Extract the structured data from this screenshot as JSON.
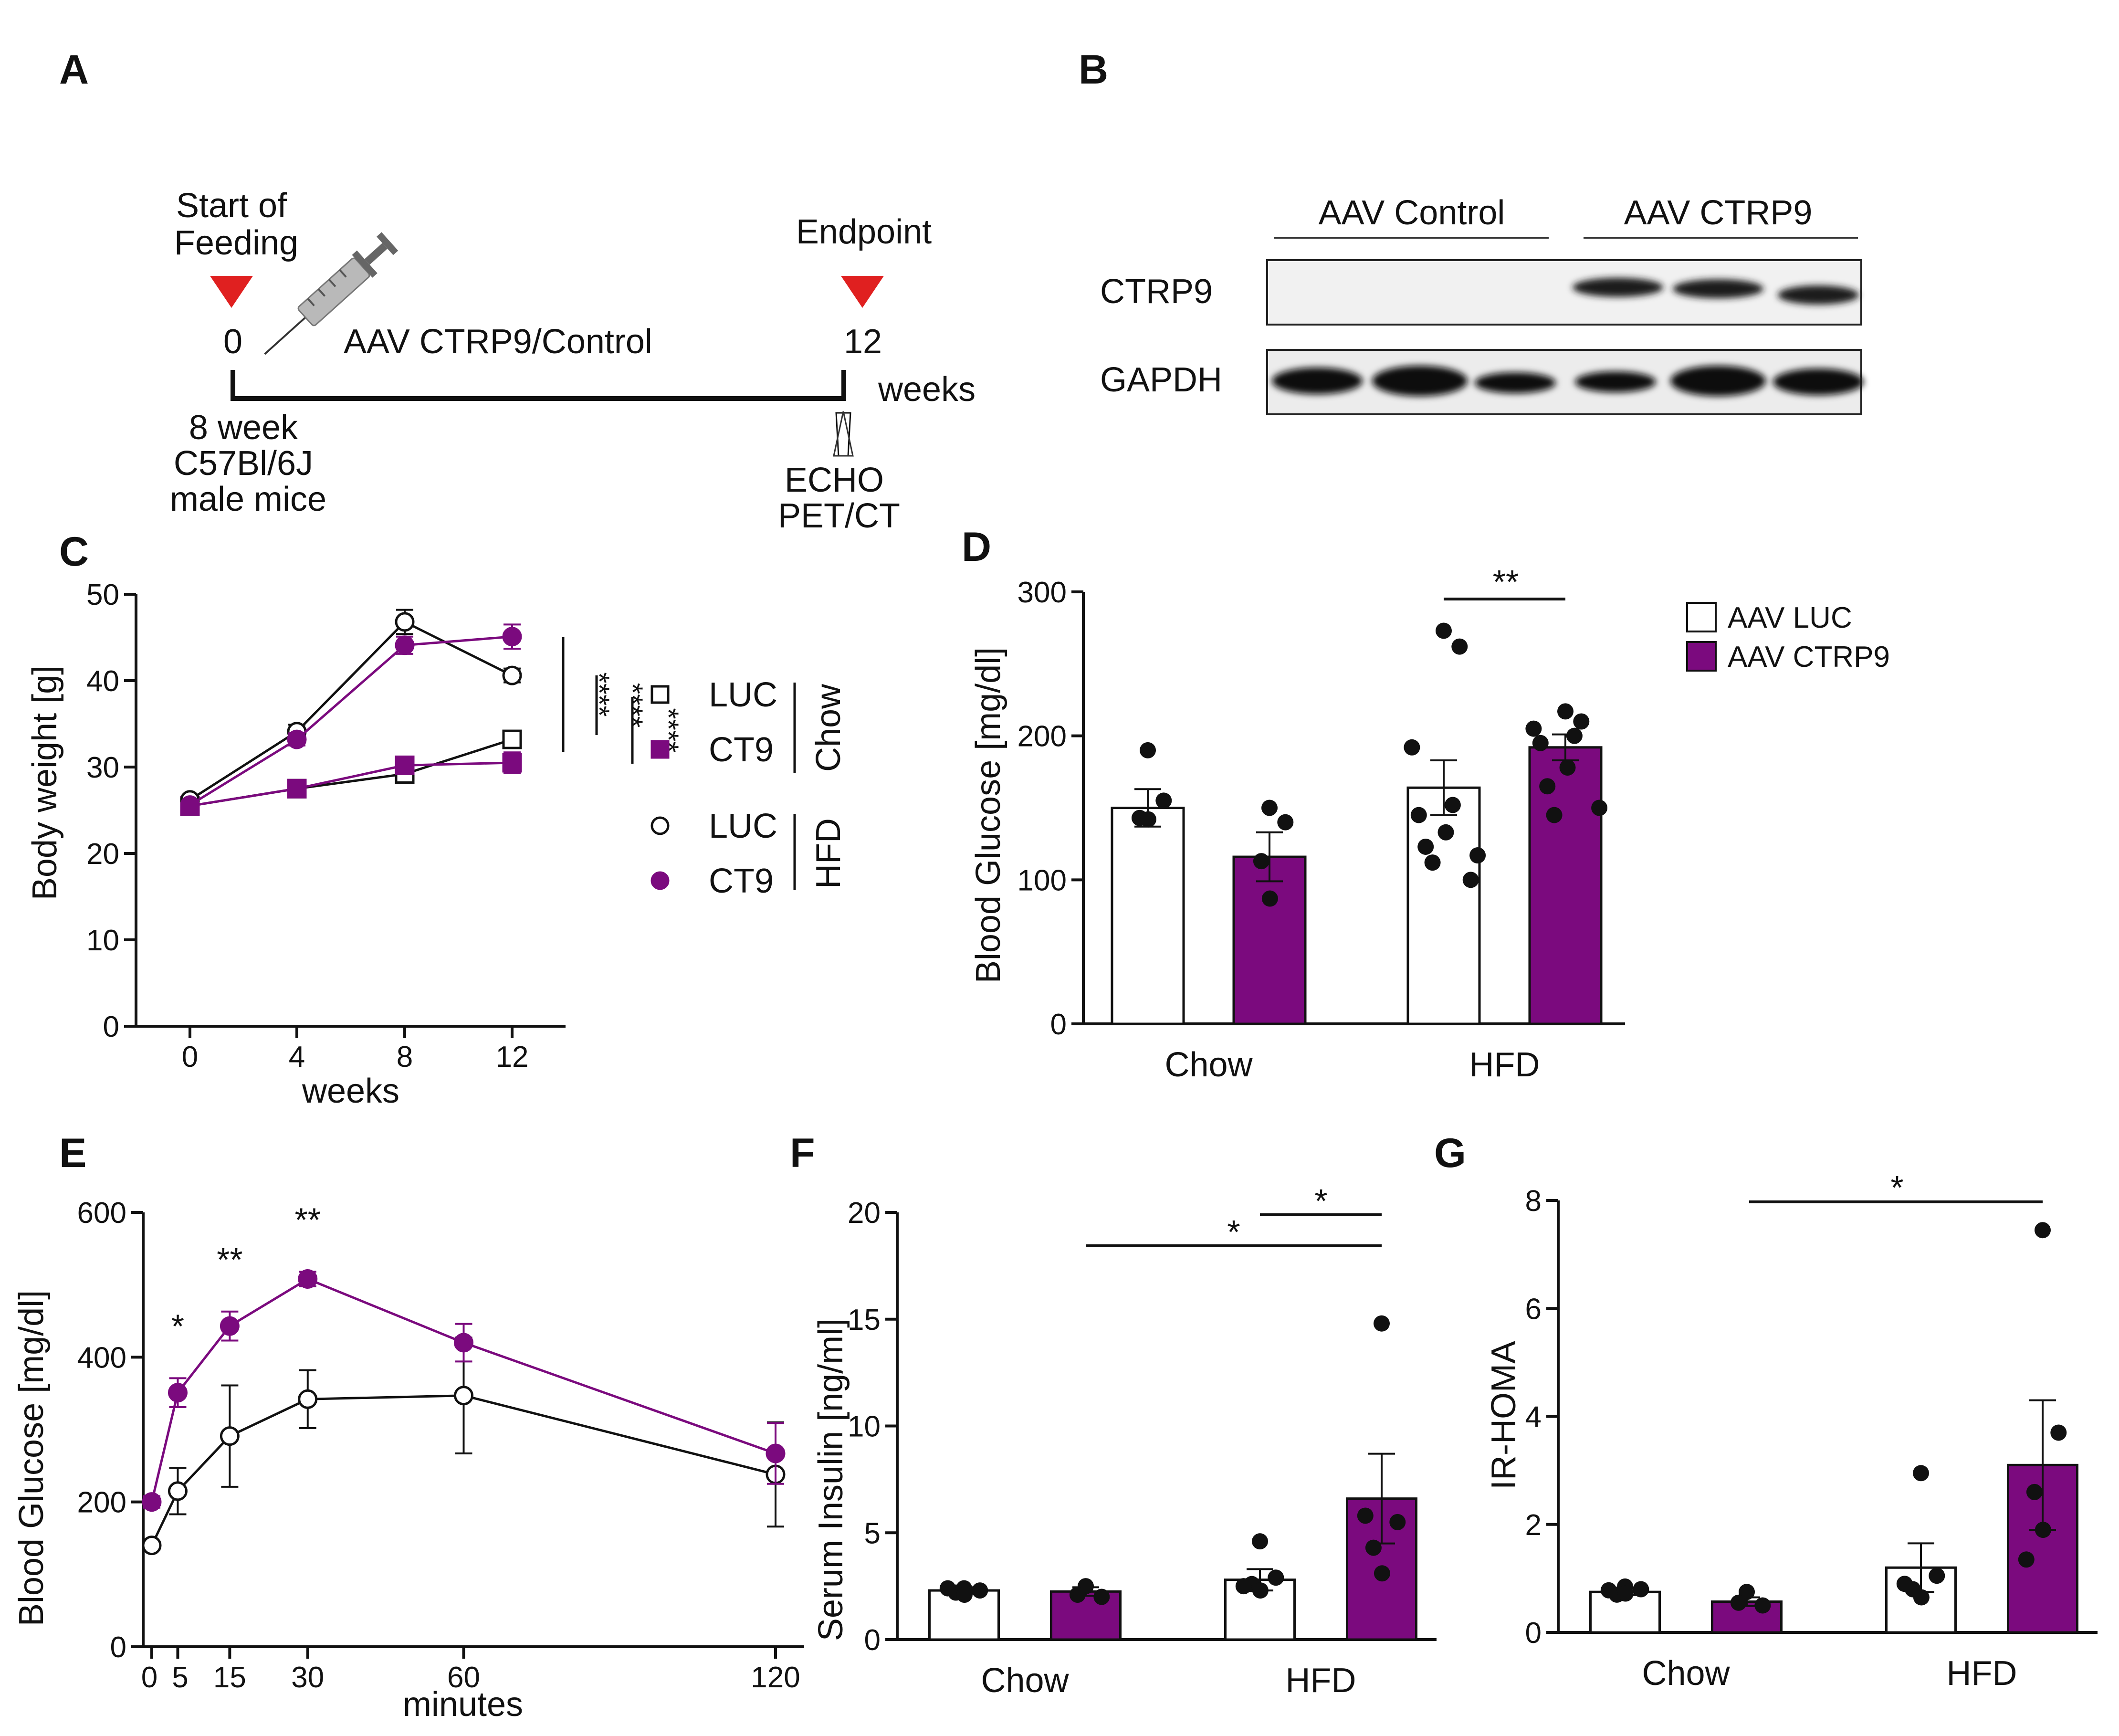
{
  "panel_labels": [
    "A",
    "B",
    "C",
    "D",
    "E",
    "F",
    "G"
  ],
  "colors": {
    "purple": "#7b0a7e",
    "black": "#111111",
    "red": "#e02020",
    "white": "#ffffff"
  },
  "timeline": {
    "start_label": "Start of\nFeeding",
    "endpoint_label": "Endpoint",
    "t0": "0",
    "t12": "12",
    "treatment": "AAV CTRP9/Control",
    "unit": "weeks",
    "mice": "8 week\nC57Bl/6J\nmale mice",
    "readouts": "ECHO\nPET/CT",
    "syringe_icon": "syringe-icon",
    "marker_icon": "red-triangle-icon"
  },
  "blot": {
    "group1": "AAV Control",
    "group2": "AAV CTRP9",
    "rows": [
      "CTRP9",
      "GAPDH"
    ]
  },
  "legend_D": [
    "AAV LUC",
    "AAV CTRP9"
  ],
  "chart_data": [
    {
      "id": "C",
      "type": "line",
      "xlabel": "weeks",
      "ylabel": "Body weight [g]",
      "x": [
        0,
        4,
        8,
        12
      ],
      "xticks": [
        "0",
        "4",
        "8",
        "12"
      ],
      "ylim": [
        0,
        50
      ],
      "yticks": [
        "0",
        "10",
        "20",
        "30",
        "40",
        "50"
      ],
      "series": [
        {
          "name": "LUC",
          "group": "Chow",
          "marker": "open-square",
          "values": [
            25.5,
            27.5,
            29.2,
            33.2
          ],
          "err": [
            0.6,
            0.6,
            0.8,
            1.0
          ]
        },
        {
          "name": "CT9",
          "group": "Chow",
          "marker": "filled-square",
          "values": [
            25.5,
            27.5,
            30.2,
            30.5
          ],
          "err": [
            0.5,
            0.6,
            0.8,
            1.2
          ]
        },
        {
          "name": "LUC",
          "group": "HFD",
          "marker": "open-circle",
          "values": [
            26.2,
            34.1,
            46.8,
            40.6
          ],
          "err": [
            0.5,
            0.8,
            1.4,
            0.8
          ]
        },
        {
          "name": "CT9",
          "group": "HFD",
          "marker": "filled-circle",
          "values": [
            25.6,
            33.2,
            44.1,
            45.1
          ],
          "err": [
            0.5,
            0.7,
            1.0,
            1.4
          ]
        }
      ],
      "legend_groups": [
        "Chow",
        "HFD"
      ],
      "significance": [
        "****",
        "****",
        "****"
      ]
    },
    {
      "id": "D",
      "type": "bar",
      "ylabel": "Blood Glucose [mg/dl]",
      "categories": [
        "Chow",
        "HFD"
      ],
      "ylim": [
        0,
        300
      ],
      "yticks": [
        "0",
        "100",
        "200",
        "300"
      ],
      "series": [
        {
          "name": "AAV LUC",
          "values": [
            150,
            164
          ],
          "err": [
            13,
            19
          ],
          "points": [
            [
              190,
              155,
              143,
              142
            ],
            [
              273,
              262,
              192,
              152,
              145,
              133,
              123,
              117,
              112,
              100
            ]
          ]
        },
        {
          "name": "AAV CTRP9",
          "values": [
            116,
            192
          ],
          "err": [
            17,
            9
          ],
          "points": [
            [
              150,
              140,
              113,
              87
            ],
            [
              217,
              210,
              205,
              200,
              195,
              178,
              165,
              150,
              145
            ]
          ]
        }
      ],
      "significance": [
        {
          "label": "**",
          "groups": [
            "HFD AAV LUC",
            "HFD AAV CTRP9"
          ]
        }
      ]
    },
    {
      "id": "E",
      "type": "line",
      "xlabel": "minutes",
      "ylabel": "Blood Glucose [mg/dl]",
      "x": [
        0,
        5,
        15,
        30,
        60,
        120
      ],
      "xticks": [
        "0",
        "5",
        "15",
        "30",
        "60",
        "120"
      ],
      "ylim": [
        0,
        600
      ],
      "yticks": [
        "0",
        "200",
        "400",
        "600"
      ],
      "series": [
        {
          "name": "AAV LUC",
          "marker": "open-circle",
          "values": [
            140,
            215,
            291,
            342,
            347,
            238
          ],
          "err": [
            6,
            32,
            70,
            40,
            80,
            72
          ]
        },
        {
          "name": "AAV CTRP9",
          "marker": "filled-circle",
          "values": [
            200,
            351,
            443,
            508,
            420,
            267
          ],
          "err": [
            8,
            20,
            20,
            10,
            26,
            42
          ]
        }
      ],
      "significance": [
        {
          "x": 5,
          "label": "*"
        },
        {
          "x": 15,
          "label": "**"
        },
        {
          "x": 30,
          "label": "**"
        }
      ]
    },
    {
      "id": "F",
      "type": "bar",
      "ylabel": "Serum Insulin [ng/ml]",
      "categories": [
        "Chow",
        "HFD"
      ],
      "ylim": [
        0,
        20
      ],
      "yticks": [
        "0",
        "5",
        "10",
        "15",
        "20"
      ],
      "series": [
        {
          "name": "AAV LUC",
          "values": [
            2.3,
            2.8
          ],
          "err": [
            0.15,
            0.5
          ],
          "points": [
            [
              2.4,
              2.3,
              2.2,
              2.1,
              2.4
            ],
            [
              4.6,
              2.9,
              2.6,
              2.3,
              2.5
            ]
          ]
        },
        {
          "name": "AAV CTRP9",
          "values": [
            2.25,
            6.6
          ],
          "err": [
            0.2,
            2.1
          ],
          "points": [
            [
              2.5,
              2.0,
              2.1
            ],
            [
              14.8,
              5.5,
              4.3,
              3.1,
              5.8
            ]
          ]
        }
      ],
      "significance": [
        {
          "label": "*",
          "groups": [
            "HFD AAV LUC",
            "HFD AAV CTRP9"
          ]
        },
        {
          "label": "*",
          "groups": [
            "Chow AAV CTRP9",
            "HFD AAV CTRP9"
          ]
        }
      ]
    },
    {
      "id": "G",
      "type": "bar",
      "ylabel": "IR-HOMA",
      "categories": [
        "Chow",
        "HFD"
      ],
      "ylim": [
        0,
        8
      ],
      "yticks": [
        "0",
        "2",
        "4",
        "6",
        "8"
      ],
      "series": [
        {
          "name": "AAV LUC",
          "values": [
            0.75,
            1.2
          ],
          "err": [
            0.06,
            0.45
          ],
          "points": [
            [
              0.85,
              0.8,
              0.7,
              0.72,
              0.78
            ],
            [
              2.95,
              1.05,
              0.8,
              0.65,
              0.9
            ]
          ]
        },
        {
          "name": "AAV CTRP9",
          "values": [
            0.57,
            3.1
          ],
          "err": [
            0.08,
            1.2
          ],
          "points": [
            [
              0.75,
              0.5,
              0.55
            ],
            [
              7.45,
              3.7,
              2.6,
              1.9,
              1.35
            ]
          ]
        }
      ],
      "significance": [
        {
          "label": "*",
          "groups": [
            "Chow AAV CTRP9",
            "HFD AAV CTRP9"
          ]
        }
      ]
    }
  ]
}
